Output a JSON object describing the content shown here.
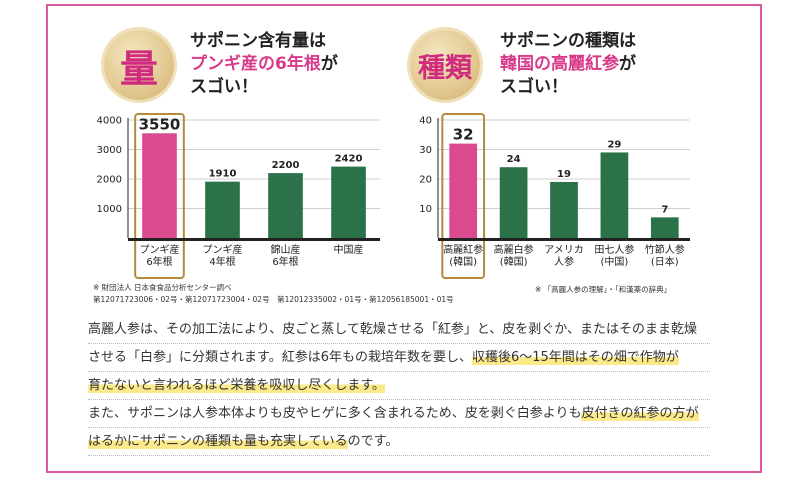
{
  "left": {
    "badge": "量",
    "headline": {
      "line1": "サポニン含有量は",
      "line2_pink": "プンギ産の6年根",
      "line2_rest": "が",
      "line3": "スゴい！"
    },
    "note_line1": "※ 財団法人 日本食食品分析センター調べ",
    "note_line2": "第12071723006・02号・第12071723004・02号　第12012335002・01号・第12056185001・01号"
  },
  "right": {
    "badge": "種類",
    "headline": {
      "line1": "サポニンの種類は",
      "line2_pink": "韓国の高麗紅参",
      "line2_rest": "が",
      "line3": "スゴい！"
    },
    "note": "※ 「高麗人参の理解」・「和漢薬の辞典」"
  },
  "chart_data": [
    {
      "type": "bar",
      "categories": [
        [
          "プンギ産",
          "6年根"
        ],
        [
          "プンギ産",
          "4年根"
        ],
        [
          "錦山産",
          "6年根"
        ],
        [
          "中国産"
        ]
      ],
      "values": [
        3550,
        1910,
        2200,
        2420
      ],
      "ylim": [
        0,
        4000
      ],
      "yticks": [
        1000,
        2000,
        3000,
        4000
      ],
      "highlight_index": 0,
      "colors": {
        "highlight": "#d94a8e",
        "normal": "#2c7248",
        "frame": "#b48a3a"
      }
    },
    {
      "type": "bar",
      "categories": [
        [
          "高麗紅参",
          "(韓国)"
        ],
        [
          "高麗白参",
          "(韓国)"
        ],
        [
          "アメリカ",
          "人参"
        ],
        [
          "田七人参",
          "(中国)"
        ],
        [
          "竹節人参",
          "(日本)"
        ]
      ],
      "values": [
        32,
        24,
        19,
        29,
        7
      ],
      "ylim": [
        0,
        40
      ],
      "yticks": [
        10,
        20,
        30,
        40
      ],
      "highlight_index": 0,
      "colors": {
        "highlight": "#d94a8e",
        "normal": "#2c7248",
        "frame": "#b48a3a"
      }
    }
  ],
  "body": {
    "l1": "高麗人参は、その加工法により、皮ごと蒸して乾燥させる「紅参」と、皮を剥ぐか、またはそのまま乾燥",
    "l2a": "させる「白参」に分類されます。紅参は6年もの栽培年数を要し、",
    "l2b": "収穫後6〜15年間はその畑で作物が",
    "l3": "育たないと言われるほど栄養を吸収し尽くします。",
    "l4a": "また、サポニンは人参本体よりも皮やヒゲに多く含まれるため、皮を剥ぐ白参よりも",
    "l4b": "皮付きの紅参の方が",
    "l5a": "はるかにサポニンの種類も量も充実している",
    "l5b": "のです。"
  }
}
